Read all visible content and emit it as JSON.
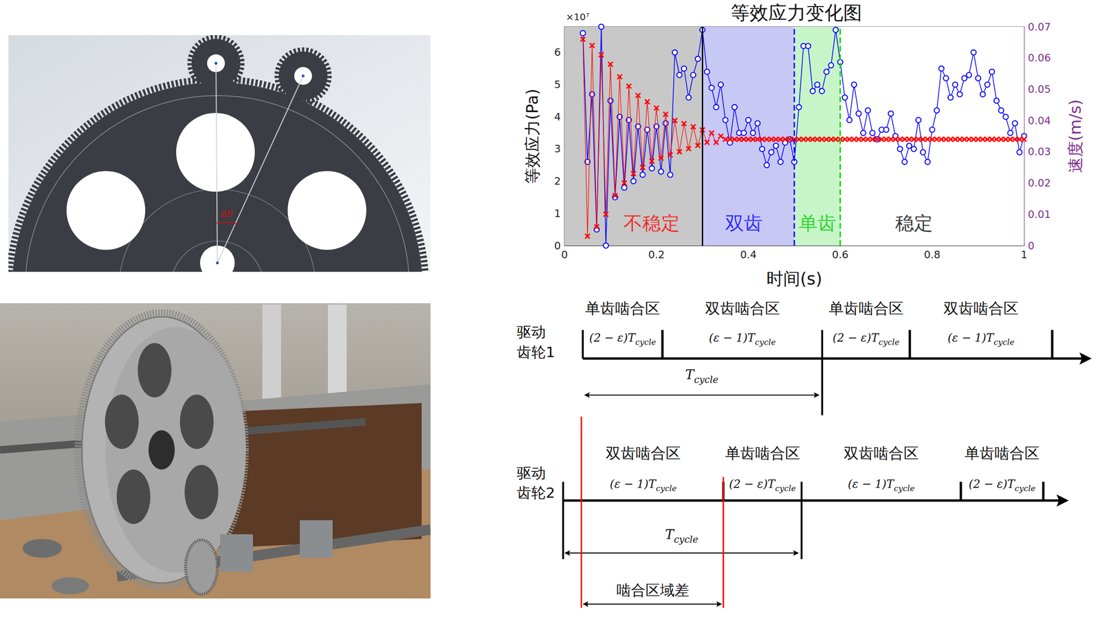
{
  "chart_data": {
    "type": "line",
    "title": "等效应力变化图",
    "xlabel": "时间(s)",
    "ylabel": "等效应力(Pa)",
    "y_multiplier": "×10⁷",
    "y2label": "速度(m/s)",
    "y2_color": "#7e2f8e",
    "grid": true,
    "xlim": [
      0,
      1
    ],
    "xticks": [
      0,
      0.2,
      0.4,
      0.6,
      0.8,
      1
    ],
    "ylim": [
      0,
      6.8
    ],
    "yticks": [
      0,
      1,
      2,
      3,
      4,
      5,
      6
    ],
    "y2lim": [
      0,
      0.07
    ],
    "y2ticks": [
      0,
      0.01,
      0.02,
      0.03,
      0.04,
      0.05,
      0.06,
      0.07
    ],
    "x": [
      0.04,
      0.05,
      0.06,
      0.07,
      0.08,
      0.09,
      0.1,
      0.11,
      0.12,
      0.13,
      0.14,
      0.15,
      0.16,
      0.17,
      0.18,
      0.19,
      0.2,
      0.21,
      0.22,
      0.23,
      0.24,
      0.25,
      0.26,
      0.27,
      0.28,
      0.29,
      0.3,
      0.31,
      0.32,
      0.33,
      0.34,
      0.35,
      0.36,
      0.37,
      0.38,
      0.39,
      0.4,
      0.41,
      0.42,
      0.43,
      0.44,
      0.45,
      0.46,
      0.47,
      0.48,
      0.49,
      0.5,
      0.51,
      0.52,
      0.53,
      0.54,
      0.55,
      0.56,
      0.57,
      0.58,
      0.59,
      0.6,
      0.61,
      0.62,
      0.63,
      0.64,
      0.65,
      0.66,
      0.67,
      0.68,
      0.69,
      0.7,
      0.71,
      0.72,
      0.73,
      0.74,
      0.75,
      0.76,
      0.77,
      0.78,
      0.79,
      0.8,
      0.81,
      0.82,
      0.83,
      0.84,
      0.85,
      0.86,
      0.87,
      0.88,
      0.89,
      0.9,
      0.91,
      0.92,
      0.93,
      0.94,
      0.95,
      0.96,
      0.97,
      0.98,
      0.99,
      1.0
    ],
    "series": [
      {
        "color": "#0000ff",
        "marker": "circle",
        "axis": "y",
        "values": [
          6.6,
          2.6,
          4.7,
          0.5,
          6.8,
          0.0,
          4.5,
          1.5,
          4.0,
          1.8,
          3.9,
          2.0,
          3.7,
          2.2,
          3.6,
          2.4,
          3.7,
          2.3,
          3.8,
          2.2,
          6.0,
          5.3,
          5.5,
          4.6,
          5.3,
          5.8,
          6.7,
          5.4,
          4.9,
          4.3,
          5.0,
          3.9,
          3.2,
          4.3,
          3.5,
          3.5,
          3.9,
          3.5,
          3.8,
          3.0,
          2.5,
          2.9,
          3.1,
          2.6,
          3.2,
          3.3,
          2.6,
          4.3,
          6.2,
          6.2,
          4.8,
          5.0,
          4.8,
          5.4,
          5.6,
          6.7,
          5.7,
          4.6,
          3.9,
          5.0,
          4.1,
          3.5,
          4.2,
          3.5,
          3.3,
          3.6,
          3.6,
          4.1,
          3.4,
          3.0,
          2.6,
          3.1,
          3.0,
          3.9,
          2.9,
          2.6,
          3.6,
          4.2,
          5.5,
          5.2,
          4.6,
          5.0,
          4.7,
          5.2,
          5.3,
          6.0,
          5.2,
          4.7,
          5.0,
          5.4,
          4.5,
          4.2,
          4.0,
          3.5,
          3.8,
          2.9,
          3.4
        ]
      },
      {
        "color": "#ff0000",
        "marker": "x",
        "axis": "y2",
        "values": [
          0.066,
          0.003,
          0.064,
          0.006,
          0.061,
          0.01,
          0.058,
          0.016,
          0.054,
          0.02,
          0.051,
          0.023,
          0.048,
          0.025,
          0.046,
          0.027,
          0.044,
          0.028,
          0.042,
          0.029,
          0.04,
          0.03,
          0.039,
          0.031,
          0.038,
          0.032,
          0.037,
          0.033,
          0.036,
          0.033,
          0.035,
          0.034,
          0.034,
          0.034,
          0.034,
          0.034,
          0.034,
          0.034,
          0.034,
          0.034,
          0.034,
          0.034,
          0.034,
          0.034,
          0.034,
          0.034,
          0.034,
          0.034,
          0.034,
          0.034,
          0.034,
          0.034,
          0.034,
          0.034,
          0.034,
          0.034,
          0.034,
          0.034,
          0.034,
          0.034,
          0.034,
          0.034,
          0.034,
          0.034,
          0.034,
          0.034,
          0.034,
          0.034,
          0.034,
          0.034,
          0.034,
          0.034,
          0.034,
          0.034,
          0.034,
          0.034,
          0.034,
          0.034,
          0.034,
          0.034,
          0.034,
          0.034,
          0.034,
          0.034,
          0.034,
          0.034,
          0.034,
          0.034,
          0.034,
          0.034,
          0.034,
          0.034,
          0.034,
          0.034,
          0.034,
          0.034,
          0.034
        ]
      }
    ],
    "regions": [
      {
        "from": 0,
        "to": 0.3,
        "color": "#c8c8c8"
      },
      {
        "from": 0.3,
        "to": 0.5,
        "color": "#c8c8f5"
      },
      {
        "from": 0.5,
        "to": 0.6,
        "color": "#c8f5c8"
      },
      {
        "from": 0.6,
        "to": 1,
        "color": "#ffffff"
      }
    ],
    "boundaries": [
      {
        "x": 0.3,
        "color": "#000000",
        "line_style": "solid"
      },
      {
        "x": 0.5,
        "color": "#0000ff",
        "line_style": "dashed"
      },
      {
        "x": 0.6,
        "color": "#00dd00",
        "line_style": "dashed"
      }
    ],
    "annotations": [
      {
        "text": "不稳定",
        "x": 0.19,
        "y": 0.7,
        "color": "#ff0000"
      },
      {
        "text": "双齿",
        "x": 0.39,
        "y": 0.7,
        "color": "#0000ff"
      },
      {
        "text": "单齿",
        "x": 0.55,
        "y": 0.7,
        "color": "#00cc00"
      },
      {
        "text": "稳定",
        "x": 0.76,
        "y": 0.7,
        "color": "#000000"
      }
    ]
  },
  "gear_sketch": {
    "angle_label": "Δθ"
  },
  "timing_diagram": {
    "rows": [
      {
        "label": [
          "驱动",
          "齿轮1"
        ],
        "zones": [
          {
            "name": "单齿啮合区",
            "duration": {
              "expr": "(2 − ε)T",
              "sub": "cycle"
            }
          },
          {
            "name": "双齿啮合区",
            "duration": {
              "expr": "(ε − 1)T",
              "sub": "cycle"
            }
          },
          {
            "name": "单齿啮合区",
            "duration": {
              "expr": "(2 − ε)T",
              "sub": "cycle"
            }
          },
          {
            "name": "双齿啮合区",
            "duration": {
              "expr": "(ε − 1)T",
              "sub": "cycle"
            }
          }
        ],
        "period": {
          "expr": "T",
          "sub": "cycle"
        }
      },
      {
        "label": [
          "驱动",
          "齿轮2"
        ],
        "zones": [
          {
            "name": "双齿啮合区",
            "duration": {
              "expr": "(ε − 1)T",
              "sub": "cycle"
            }
          },
          {
            "name": "单齿啮合区",
            "duration": {
              "expr": "(2 − ε)T",
              "sub": "cycle"
            }
          },
          {
            "name": "双齿啮合区",
            "duration": {
              "expr": "(ε − 1)T",
              "sub": "cycle"
            }
          },
          {
            "name": "单齿啮合区",
            "duration": {
              "expr": "(2 − ε)T",
              "sub": "cycle"
            }
          }
        ],
        "period": {
          "expr": "T",
          "sub": "cycle"
        }
      }
    ],
    "offset_label": "啮合区域差"
  }
}
